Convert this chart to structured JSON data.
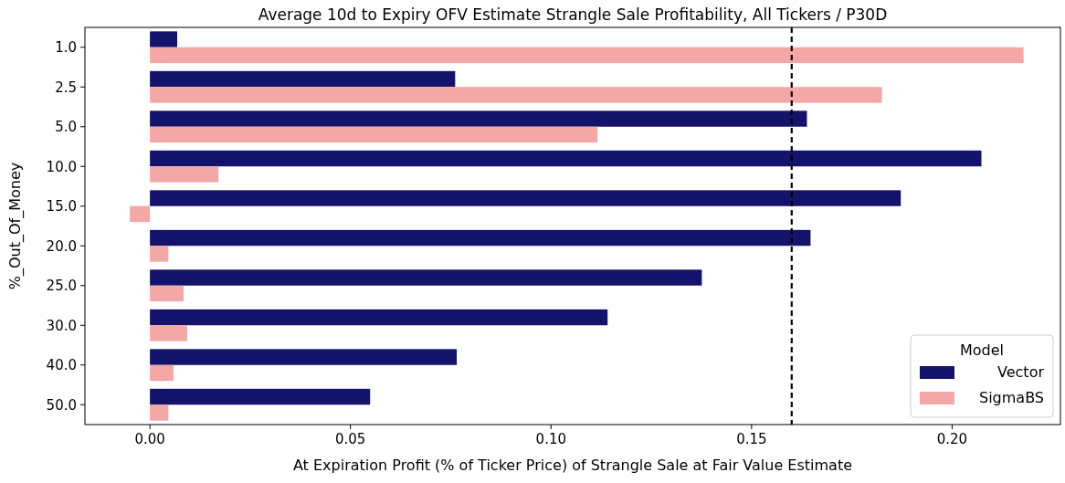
{
  "chart_data": {
    "type": "bar",
    "orientation": "horizontal",
    "title": "Average 10d to Expiry OFV Estimate Strangle Sale Profitability, All Tickers / P30D",
    "xlabel": "At Expiration Profit  (% of Ticker Price) of Strangle Sale at Fair Value Estimate",
    "ylabel": "%_Out_Of_Money",
    "legend_title": "Model",
    "legend": "bottom right",
    "categories": [
      "1.0",
      "2.5",
      "5.0",
      "10.0",
      "15.0",
      "20.0",
      "25.0",
      "30.0",
      "40.0",
      "50.0"
    ],
    "series": [
      {
        "name": "Vector",
        "color": "#13136b",
        "values": [
          0.0068,
          0.0761,
          0.1638,
          0.2073,
          0.1872,
          0.1647,
          0.1376,
          0.1141,
          0.0765,
          0.0549
        ]
      },
      {
        "name": "SigmaBS",
        "color": "#f4a7a7",
        "values": [
          0.2178,
          0.1825,
          0.1116,
          0.0171,
          -0.005,
          0.0046,
          0.0084,
          0.0093,
          0.0059,
          0.0046
        ]
      }
    ],
    "xlim": [
      -0.0162,
      0.227
    ],
    "xticks": [
      {
        "value": 0,
        "label": "0.00"
      },
      {
        "value": 0.05,
        "label": "0.05"
      },
      {
        "value": 0.1,
        "label": "0.10"
      },
      {
        "value": 0.15,
        "label": "0.15"
      },
      {
        "value": 0.2,
        "label": "0.20"
      }
    ],
    "ref_lines": [
      {
        "axis": "x",
        "value": 0.16,
        "color": "#000000",
        "line_style": "dashed"
      }
    ]
  }
}
